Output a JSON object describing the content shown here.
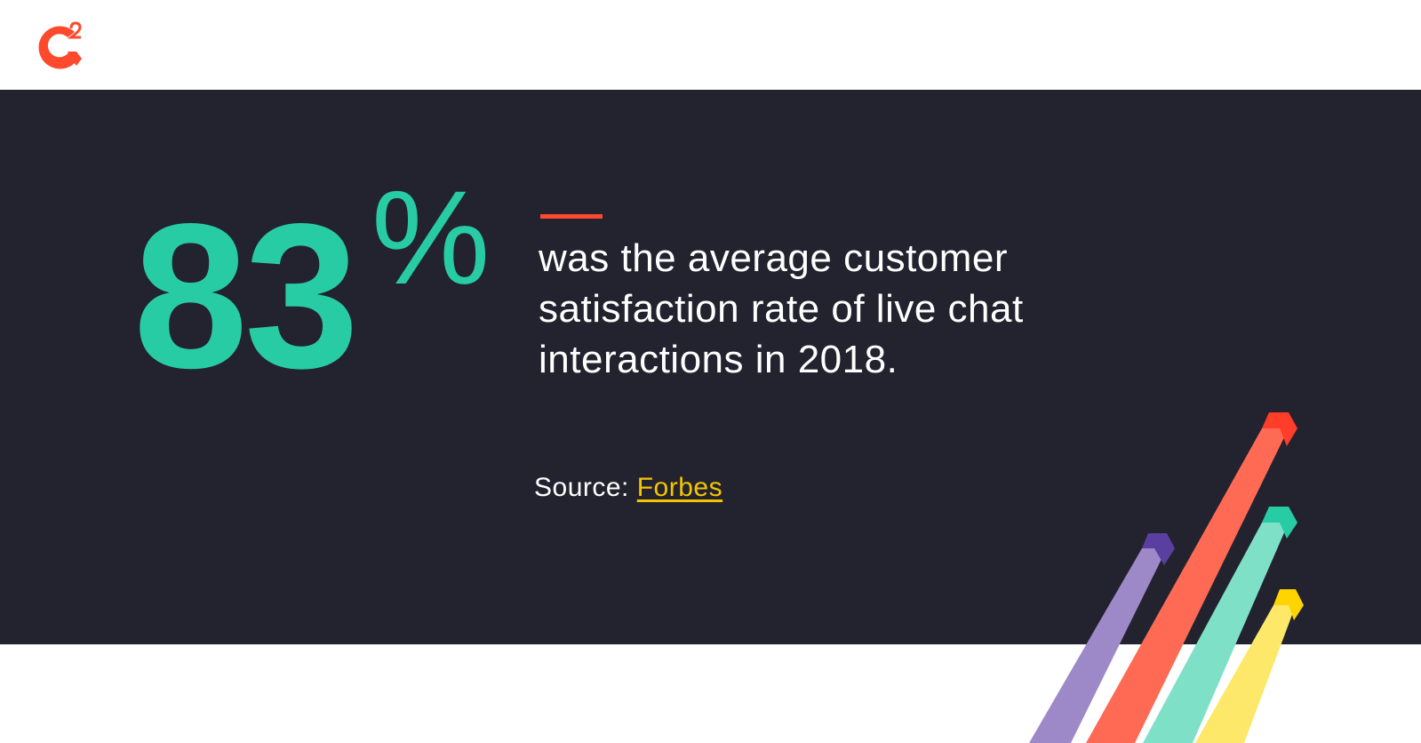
{
  "stat": {
    "number": "83",
    "unit": "%"
  },
  "description": [
    "was the average customer",
    "satisfaction rate of live chat",
    "interactions in 2018."
  ],
  "source": {
    "label": "Source:",
    "link": "Forbes"
  }
}
